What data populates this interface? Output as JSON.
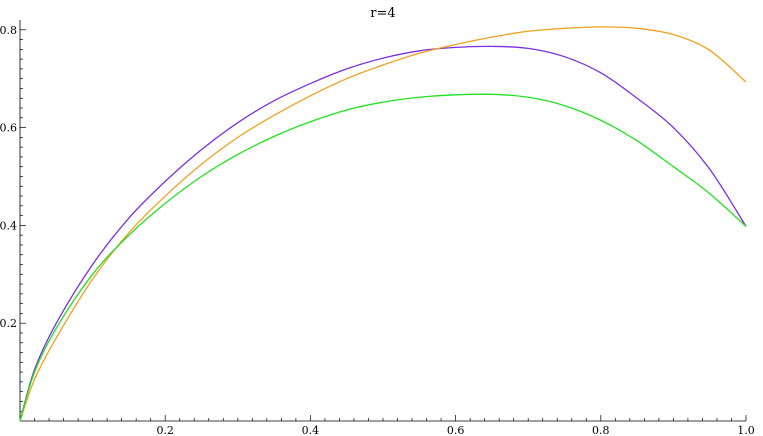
{
  "chart_data": {
    "type": "line",
    "title": "r=4",
    "xlabel": "",
    "ylabel": "",
    "xlim": [
      0,
      1
    ],
    "ylim": [
      0,
      0.82
    ],
    "grid": false,
    "x_ticks": [
      0.2,
      0.4,
      0.6,
      0.8,
      1.0
    ],
    "x_tick_labels": [
      "0.2",
      "0.4",
      "0.6",
      "0.8",
      "1.0"
    ],
    "y_ticks": [
      0.2,
      0.4,
      0.6,
      0.8
    ],
    "y_tick_labels": [
      "0.2",
      "0.4",
      "0.6",
      "0.8"
    ],
    "series": [
      {
        "color": "#7b2fe0",
        "x": [
          0,
          0.02,
          0.05,
          0.1,
          0.15,
          0.2,
          0.25,
          0.3,
          0.35,
          0.4,
          0.45,
          0.5,
          0.55,
          0.6,
          0.65,
          0.7,
          0.75,
          0.8,
          0.85,
          0.9,
          0.95,
          1.0
        ],
        "y": [
          0,
          0.105,
          0.2,
          0.32,
          0.415,
          0.49,
          0.555,
          0.61,
          0.655,
          0.69,
          0.72,
          0.742,
          0.757,
          0.764,
          0.766,
          0.762,
          0.745,
          0.712,
          0.66,
          0.6,
          0.515,
          0.398
        ]
      },
      {
        "color": "#f0a020",
        "x": [
          0,
          0.02,
          0.05,
          0.1,
          0.15,
          0.2,
          0.25,
          0.3,
          0.35,
          0.4,
          0.45,
          0.5,
          0.55,
          0.6,
          0.65,
          0.7,
          0.75,
          0.8,
          0.85,
          0.9,
          0.95,
          1.0
        ],
        "y": [
          0,
          0.085,
          0.17,
          0.29,
          0.385,
          0.46,
          0.525,
          0.58,
          0.625,
          0.665,
          0.7,
          0.728,
          0.752,
          0.77,
          0.785,
          0.797,
          0.803,
          0.806,
          0.803,
          0.79,
          0.758,
          0.693
        ]
      },
      {
        "color": "#22e022",
        "x": [
          0,
          0.02,
          0.05,
          0.1,
          0.15,
          0.2,
          0.25,
          0.3,
          0.35,
          0.4,
          0.45,
          0.5,
          0.55,
          0.6,
          0.65,
          0.7,
          0.75,
          0.8,
          0.85,
          0.9,
          0.95,
          1.0
        ],
        "y": [
          0,
          0.1,
          0.19,
          0.3,
          0.38,
          0.445,
          0.5,
          0.545,
          0.582,
          0.612,
          0.636,
          0.652,
          0.662,
          0.667,
          0.668,
          0.662,
          0.645,
          0.615,
          0.573,
          0.52,
          0.465,
          0.398
        ]
      }
    ]
  }
}
